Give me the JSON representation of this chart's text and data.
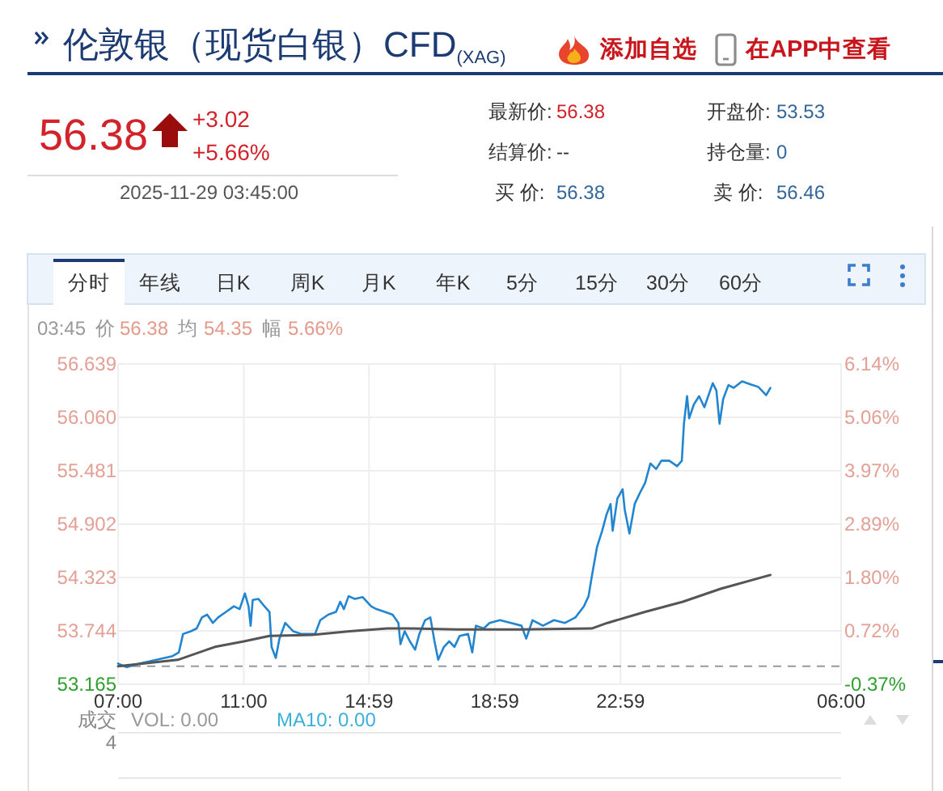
{
  "chart_data": [
    {
      "type": "other",
      "title": "伦敦银（现货白银）CFD$_{(XAG)}$",
      "annotations": [
        "添加自选",
        "在APP中查看",
        "56.38",
        "+3.02",
        "+5.66%",
        "2025-11-29 03:45:00",
        "最新价:",
        "56.38",
        "开盘价:",
        "53.53",
        "结算价:",
        "--",
        "持仓量:",
        "0",
        "买 价:",
        "56.38",
        "卖 价:",
        "56.46"
      ]
    },
    {
      "type": "line",
      "series": [
        {
          "color": "#2185d0",
          "x": [
            "2025-11-28T07:00",
            "2025-11-28T07:16",
            "2025-11-28T07:42",
            "2025-11-28T08:13",
            "2025-11-28T08:44",
            "2025-11-28T08:56",
            "2025-11-28T09:04",
            "2025-11-28T09:19",
            "2025-11-28T09:30",
            "2025-11-28T09:40",
            "2025-11-28T09:50",
            "2025-11-28T10:01",
            "2025-11-28T10:11",
            "2025-11-28T10:26",
            "2025-11-28T10:41",
            "2025-11-28T10:52",
            "2025-11-28T11:02",
            "2025-11-28T11:09",
            "2025-11-28T11:13",
            "2025-11-28T11:17",
            "2025-11-28T11:28",
            "2025-11-28T11:38",
            "2025-11-28T11:49",
            "2025-11-28T11:53",
            "2025-11-28T12:01",
            "2025-11-28T12:08",
            "2025-11-28T12:19",
            "2025-11-28T12:34",
            "2025-11-28T12:50",
            "2025-11-28T13:16",
            "2025-11-28T13:26",
            "2025-11-28T13:41",
            "2025-11-28T13:56",
            "2025-11-28T14:04",
            "2025-11-28T14:11",
            "2025-11-28T14:20",
            "2025-11-28T14:32",
            "2025-11-28T14:47",
            "2025-11-28T15:03",
            "2025-11-28T15:13",
            "2025-11-28T15:29",
            "2025-11-28T15:44",
            "2025-11-28T15:55",
            "2025-11-28T15:59",
            "2025-11-28T16:07",
            "2025-11-28T16:17",
            "2025-11-28T16:27",
            "2025-11-28T16:35",
            "2025-11-28T16:46",
            "2025-11-28T16:56",
            "2025-11-28T17:04",
            "2025-11-28T17:11",
            "2025-11-28T17:22",
            "2025-11-28T17:32",
            "2025-11-28T17:42",
            "2025-11-28T17:52",
            "2025-11-28T18:08",
            "2025-11-28T18:16",
            "2025-11-28T18:23",
            "2025-11-28T18:38",
            "2025-11-28T18:49",
            "2025-11-28T19:09",
            "2025-11-28T19:30",
            "2025-11-28T19:50",
            "2025-11-28T19:59",
            "2025-11-28T20:11",
            "2025-11-28T20:31",
            "2025-11-28T20:52",
            "2025-11-28T21:13",
            "2025-11-28T21:33",
            "2025-11-28T21:49",
            "2025-11-28T21:58",
            "2025-11-28T22:05",
            "2025-11-28T22:14",
            "2025-11-28T22:24",
            "2025-11-28T22:32",
            "2025-11-28T22:40",
            "2025-11-28T22:44",
            "2025-11-28T22:53",
            "2025-11-28T23:03",
            "2025-11-28T23:07",
            "2025-11-28T23:16",
            "2025-11-28T23:26",
            "2025-11-28T23:36",
            "2025-11-28T23:46",
            "2025-11-28T23:56",
            "2025-11-29T00:07",
            "2025-11-29T00:17",
            "2025-11-29T00:32",
            "2025-11-29T00:47",
            "2025-11-29T00:56",
            "2025-11-29T01:00",
            "2025-11-29T01:06",
            "2025-11-29T01:10",
            "2025-11-29T01:19",
            "2025-11-29T01:29",
            "2025-11-29T01:39",
            "2025-11-29T01:55",
            "2025-11-29T02:02",
            "2025-11-29T02:08",
            "2025-11-29T02:15",
            "2025-11-29T02:25",
            "2025-11-29T02:35",
            "2025-11-29T02:51",
            "2025-11-29T03:06",
            "2025-11-29T03:22",
            "2025-11-29T03:37",
            "2025-11-29T03:45"
          ],
          "values": [
            53.39,
            53.35,
            53.39,
            53.43,
            53.47,
            53.51,
            53.71,
            53.74,
            53.77,
            53.89,
            53.92,
            53.83,
            53.89,
            53.95,
            54.01,
            53.98,
            54.15,
            54.01,
            53.8,
            54.08,
            54.09,
            54.02,
            53.95,
            53.57,
            53.45,
            53.66,
            53.83,
            53.74,
            53.71,
            53.71,
            53.86,
            53.92,
            53.95,
            54.06,
            53.98,
            54.12,
            54.09,
            54.11,
            54.01,
            53.98,
            53.95,
            53.92,
            53.83,
            53.6,
            53.74,
            53.63,
            53.54,
            53.71,
            53.86,
            53.89,
            53.63,
            53.43,
            53.57,
            53.63,
            53.57,
            53.69,
            53.71,
            53.51,
            53.8,
            53.77,
            53.83,
            53.86,
            53.83,
            53.8,
            53.66,
            53.86,
            53.8,
            53.86,
            53.83,
            53.89,
            54.01,
            54.12,
            54.36,
            54.65,
            54.83,
            55.0,
            55.12,
            54.83,
            55.18,
            55.28,
            55.06,
            54.8,
            55.12,
            55.24,
            55.35,
            55.56,
            55.5,
            55.59,
            55.59,
            55.53,
            55.59,
            55.99,
            56.29,
            56.05,
            56.2,
            56.29,
            56.17,
            56.43,
            56.35,
            55.99,
            56.26,
            56.41,
            56.38,
            56.45,
            56.42,
            56.39,
            56.3,
            56.38
          ]
        },
        {
          "color": "#555555",
          "x": [
            "2025-11-28T07:00",
            "2025-11-28T08:54",
            "2025-11-28T10:05",
            "2025-11-28T11:00",
            "2025-11-28T11:49",
            "2025-11-28T13:10",
            "2025-11-28T14:22",
            "2025-11-28T15:34",
            "2025-11-28T16:15",
            "2025-11-28T17:47",
            "2025-11-28T19:50",
            "2025-11-28T22:04",
            "2025-11-28T22:34",
            "2025-11-28T23:46",
            "2025-11-29T00:58",
            "2025-11-29T02:10",
            "2025-11-29T03:45"
          ],
          "values": [
            53.36,
            53.43,
            53.57,
            53.63,
            53.69,
            53.7,
            53.74,
            53.77,
            53.77,
            53.76,
            53.76,
            53.77,
            53.83,
            53.95,
            54.06,
            54.2,
            54.35
          ]
        }
      ],
      "xlim": [
        "2025-11-28T07:00",
        "2025-11-29T06:00"
      ],
      "xticks": [
        {
          "value": "2025-11-28T07:00",
          "label": "07:00"
        },
        {
          "value": "2025-11-28T11:00",
          "label": "11:00"
        },
        {
          "value": "2025-11-28T14:59",
          "label": "14:59"
        },
        {
          "value": "2025-11-28T18:59",
          "label": "18:59"
        },
        {
          "value": "2025-11-28T22:59",
          "label": "22:59"
        },
        {
          "value": "2025-11-29T06:00",
          "label": "06:00"
        }
      ],
      "ylim": [
        53.165,
        56.639
      ],
      "yticks": [
        53.165,
        53.744,
        54.323,
        54.902,
        55.481,
        {
          "value": 56.06,
          "label": "56.060"
        },
        56.639
      ],
      "y2lim": [
        -0.37,
        6.14
      ],
      "y2ticks": [
        {
          "value": -0.37,
          "label": "-0.37%"
        },
        {
          "value": 0.72,
          "label": "0.72%"
        },
        {
          "value": 1.8,
          "label": "1.80%"
        },
        {
          "value": 2.89,
          "label": "2.89%"
        },
        {
          "value": 3.97,
          "label": "3.97%"
        },
        {
          "value": 5.06,
          "label": "5.06%"
        },
        {
          "value": 6.14,
          "label": "6.14%"
        }
      ],
      "grid": true,
      "ref_lines": [
        {
          "axis": "y",
          "value": 53.36,
          "color": "#999999",
          "line_style": "dashed"
        }
      ],
      "annotations": [
        "分时",
        "年线",
        "日K",
        "周K",
        "月K",
        "年K",
        "5分",
        "15分",
        "30分",
        "60分",
        "03:45",
        "价",
        "56.38",
        "均",
        "54.35",
        "幅",
        "5.66%",
        "成交",
        "4",
        "VOL: 0.00",
        "MA10: 0.00"
      ]
    }
  ]
}
